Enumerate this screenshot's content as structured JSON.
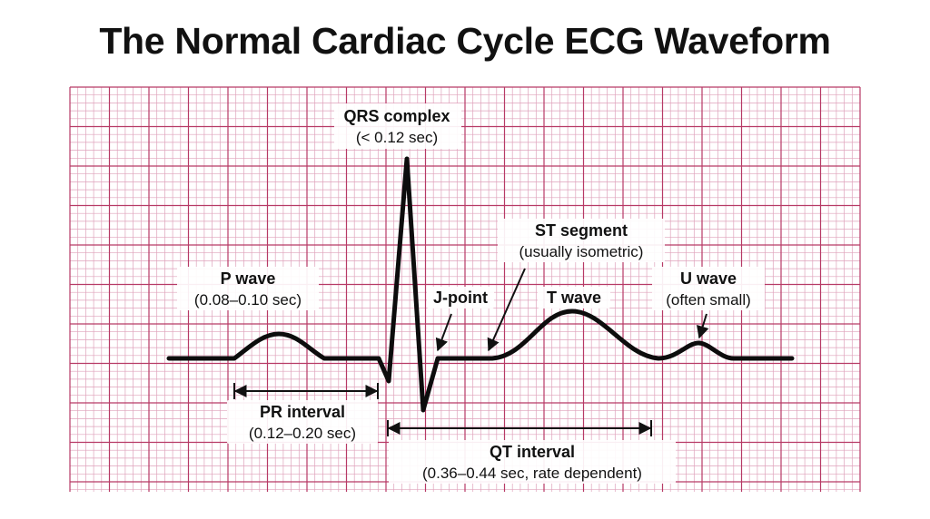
{
  "title": "The Normal Cardiac Cycle ECG Waveform",
  "colors": {
    "grid_major": "#b73a66",
    "grid_minor": "#dfa2bb",
    "background": "#ffffff",
    "waveform": "#0d0d0d"
  },
  "annotations": {
    "qrs": {
      "name": "QRS complex",
      "detail": "(< 0.12 sec)"
    },
    "st": {
      "name": "ST segment",
      "detail": "(usually isometric)"
    },
    "p": {
      "name": "P wave",
      "detail": "(0.08–0.10 sec)"
    },
    "j": {
      "name": "J-point"
    },
    "t": {
      "name": "T wave"
    },
    "u": {
      "name": "U wave",
      "detail": "(often small)"
    },
    "pr": {
      "name": "PR interval",
      "detail": "(0.12–0.20 sec)"
    },
    "qt": {
      "name": "QT interval",
      "detail": "(0.36–0.44 sec, rate dependent)"
    }
  }
}
